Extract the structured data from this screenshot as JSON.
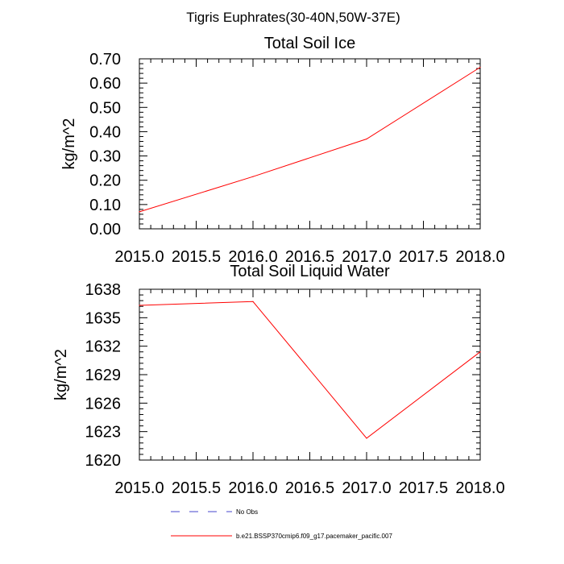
{
  "figure_title": "Tigris Euphrates(30-40N,50W-37E)",
  "chart_data": [
    {
      "type": "line",
      "title": "Total Soil Ice",
      "xlabel": "",
      "ylabel": "kg/m^2",
      "xlim": [
        2015.0,
        2018.0
      ],
      "ylim": [
        0.0,
        0.7
      ],
      "xticks": [
        "2015.0",
        "2015.5",
        "2016.0",
        "2016.5",
        "2017.0",
        "2017.5",
        "2018.0"
      ],
      "xtick_values": [
        2015.0,
        2015.5,
        2016.0,
        2016.5,
        2017.0,
        2017.5,
        2018.0
      ],
      "yticks": [
        "0.00",
        "0.10",
        "0.20",
        "0.30",
        "0.40",
        "0.50",
        "0.60",
        "0.70"
      ],
      "ytick_values": [
        0.0,
        0.1,
        0.2,
        0.3,
        0.4,
        0.5,
        0.6,
        0.7
      ],
      "series": [
        {
          "name": "b.e21.BSSP370cmip6.f09_g17.pacemaker_pacific.007",
          "color": "#ff0000",
          "x": [
            2015,
            2016,
            2017,
            2018
          ],
          "values": [
            0.07,
            0.215,
            0.37,
            0.665
          ]
        }
      ]
    },
    {
      "type": "line",
      "title": "Total Soil Liquid Water",
      "xlabel": "",
      "ylabel": "kg/m^2",
      "xlim": [
        2015.0,
        2018.0
      ],
      "ylim": [
        1620,
        1638
      ],
      "xticks": [
        "2015.0",
        "2015.5",
        "2016.0",
        "2016.5",
        "2017.0",
        "2017.5",
        "2018.0"
      ],
      "xtick_values": [
        2015.0,
        2015.5,
        2016.0,
        2016.5,
        2017.0,
        2017.5,
        2018.0
      ],
      "yticks": [
        "1620",
        "1623",
        "1626",
        "1629",
        "1632",
        "1635",
        "1638"
      ],
      "ytick_values": [
        1620,
        1623,
        1626,
        1629,
        1632,
        1635,
        1638
      ],
      "series": [
        {
          "name": "b.e21.BSSP370cmip6.f09_g17.pacemaker_pacific.007",
          "color": "#ff0000",
          "x": [
            2015,
            2016,
            2017,
            2018
          ],
          "values": [
            1636.3,
            1636.7,
            1622.3,
            1631.4
          ]
        }
      ]
    }
  ],
  "legend": {
    "items": [
      {
        "label": "No Obs",
        "color": "#4444cc",
        "style": "dashed"
      },
      {
        "label": "b.e21.BSSP370cmip6.f09_g17.pacemaker_pacific.007",
        "color": "#ff0000",
        "style": "solid"
      }
    ]
  }
}
